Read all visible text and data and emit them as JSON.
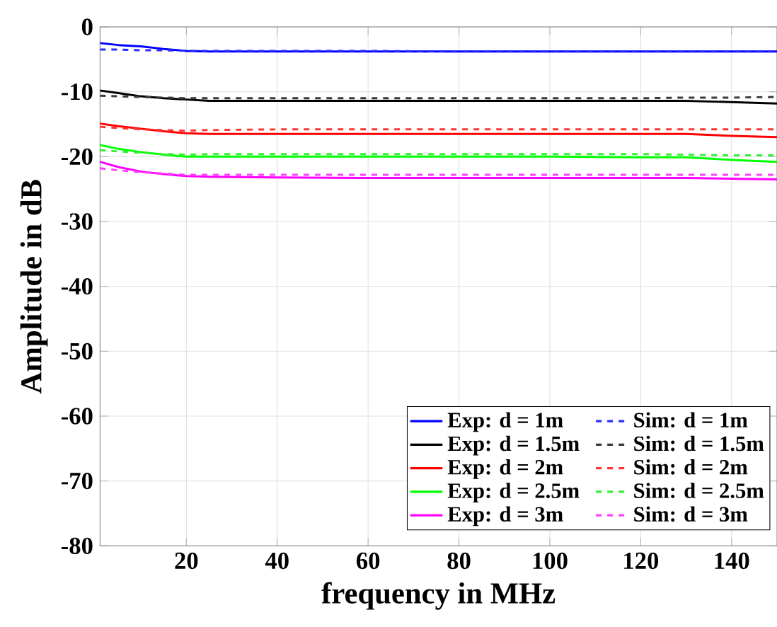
{
  "chart_data": {
    "type": "line",
    "xlabel": "frequency in MHz",
    "ylabel": "Amplitude in dB",
    "x": [
      1,
      5,
      10,
      15,
      20,
      25,
      40,
      60,
      80,
      100,
      120,
      130,
      140,
      150
    ],
    "xlim": [
      1,
      150
    ],
    "ylim": [
      -80,
      0
    ],
    "xticks": [
      20,
      40,
      60,
      80,
      100,
      120,
      140
    ],
    "yticks": [
      -80,
      -70,
      -60,
      -50,
      -40,
      -30,
      -20,
      -10,
      0
    ],
    "grid": true,
    "legend": "bottom right",
    "marker": "none",
    "series": [
      {
        "name": "Exp: d = 1m",
        "color": "#0000ff",
        "line_style": "solid",
        "values": [
          -2.5,
          -2.8,
          -3.0,
          -3.4,
          -3.7,
          -3.8,
          -3.8,
          -3.8,
          -3.8,
          -3.8,
          -3.8,
          -3.8,
          -3.8,
          -3.8
        ]
      },
      {
        "name": "Sim: d = 1m",
        "color": "#2a2aff",
        "line_style": "dashed",
        "values": [
          -3.5,
          -3.5,
          -3.6,
          -3.6,
          -3.7,
          -3.7,
          -3.7,
          -3.7,
          -3.8,
          -3.8,
          -3.8,
          -3.8,
          -3.8,
          -3.8
        ]
      },
      {
        "name": "Exp: d = 1.5m",
        "color": "#000000",
        "line_style": "solid",
        "values": [
          -9.8,
          -10.2,
          -10.7,
          -11.0,
          -11.2,
          -11.4,
          -11.4,
          -11.4,
          -11.4,
          -11.4,
          -11.4,
          -11.4,
          -11.6,
          -11.8
        ]
      },
      {
        "name": "Sim: d = 1.5m",
        "color": "#3a3a3a",
        "line_style": "dashed",
        "values": [
          -10.6,
          -10.7,
          -10.8,
          -10.9,
          -11.0,
          -11.0,
          -11.0,
          -11.0,
          -11.0,
          -11.0,
          -11.0,
          -10.9,
          -10.9,
          -10.8
        ]
      },
      {
        "name": "Exp: d = 2m",
        "color": "#ff0000",
        "line_style": "solid",
        "values": [
          -14.9,
          -15.3,
          -15.7,
          -16.1,
          -16.4,
          -16.5,
          -16.5,
          -16.5,
          -16.5,
          -16.5,
          -16.5,
          -16.5,
          -16.8,
          -17.0
        ]
      },
      {
        "name": "Sim: d = 2m",
        "color": "#ff3535",
        "line_style": "dashed",
        "values": [
          -15.4,
          -15.6,
          -15.8,
          -15.9,
          -16.0,
          -15.9,
          -15.8,
          -15.8,
          -15.8,
          -15.8,
          -15.8,
          -15.8,
          -15.8,
          -15.8
        ]
      },
      {
        "name": "Exp: d = 2.5m",
        "color": "#00ff00",
        "line_style": "solid",
        "values": [
          -18.2,
          -18.8,
          -19.3,
          -19.7,
          -20.0,
          -20.0,
          -20.0,
          -20.0,
          -20.0,
          -20.0,
          -20.1,
          -20.1,
          -20.5,
          -20.8
        ]
      },
      {
        "name": "Sim: d = 2.5m",
        "color": "#35f035",
        "line_style": "dashed",
        "values": [
          -19.0,
          -19.2,
          -19.4,
          -19.6,
          -19.7,
          -19.6,
          -19.6,
          -19.6,
          -19.6,
          -19.6,
          -19.6,
          -19.7,
          -19.8,
          -19.8
        ]
      },
      {
        "name": "Exp: d = 3m",
        "color": "#ff00ff",
        "line_style": "solid",
        "values": [
          -20.8,
          -21.6,
          -22.3,
          -22.7,
          -23.0,
          -23.1,
          -23.2,
          -23.3,
          -23.3,
          -23.3,
          -23.3,
          -23.3,
          -23.4,
          -23.5
        ]
      },
      {
        "name": "Sim: d = 3m",
        "color": "#ff40ff",
        "line_style": "dashed",
        "values": [
          -21.8,
          -22.1,
          -22.4,
          -22.6,
          -22.8,
          -22.8,
          -22.8,
          -22.8,
          -22.8,
          -22.8,
          -22.8,
          -22.8,
          -22.8,
          -22.8
        ]
      }
    ]
  }
}
